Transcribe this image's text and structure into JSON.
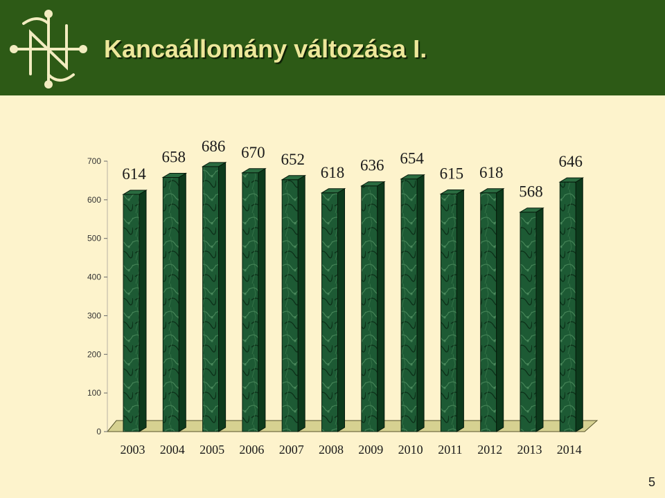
{
  "slide": {
    "title": "Kancaállomány változása I.",
    "page_number": "5"
  },
  "chart_data": {
    "type": "bar",
    "title": "Kancaállomány változása I.",
    "categories": [
      "2003",
      "2004",
      "2005",
      "2006",
      "2007",
      "2008",
      "2009",
      "2010",
      "2011",
      "2012",
      "2013",
      "2014"
    ],
    "values": [
      614,
      658,
      686,
      670,
      652,
      618,
      636,
      654,
      615,
      618,
      568,
      646
    ],
    "y_ticks": [
      0,
      100,
      200,
      300,
      400,
      500,
      600,
      700
    ],
    "ylim": [
      0,
      700
    ],
    "grid": false,
    "legend": "none",
    "bar_color": "#1d5a34",
    "floor_color": "#d6d191"
  }
}
